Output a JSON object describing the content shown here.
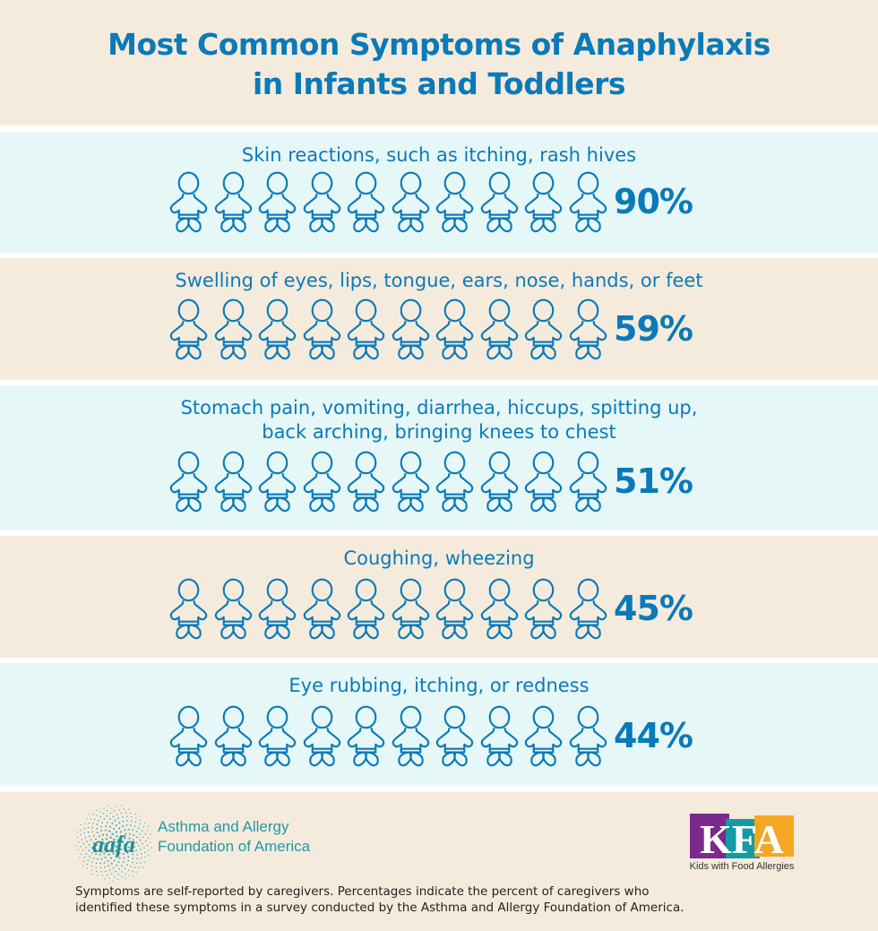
{
  "title_line1": "Most Common Symptoms of Anaphylaxis",
  "title_line2": "in Infants and Toddlers",
  "colors": {
    "accent": "#0a7ab8",
    "band_cyan": "#e6f7f8",
    "band_beige": "#f5ebdd"
  },
  "icon": "baby-outline-icon",
  "chart_data": {
    "type": "bar",
    "categories": [
      "Skin reactions, such as itching, rash hives",
      "Swelling of eyes, lips, tongue, ears, nose, hands, or feet",
      "Stomach pain, vomiting, diarrhea, hiccups, spitting up, back arching, bringing knees to chest",
      "Coughing, wheezing",
      "Eye rubbing, itching, or redness"
    ],
    "values": [
      90,
      59,
      51,
      45,
      44
    ],
    "value_labels": [
      "90%",
      "59%",
      "51%",
      "45%",
      "44%"
    ]
  },
  "rows": [
    {
      "label": "Skin reactions, such as itching, rash hives",
      "pct": "90%"
    },
    {
      "label": "Swelling of eyes, lips, tongue, ears, nose, hands, or feet",
      "pct": "59%"
    },
    {
      "label": "Stomach pain, vomiting, diarrhea, hiccups, spitting up,",
      "label2": "back arching, bringing knees to chest",
      "pct": "51%"
    },
    {
      "label": "Coughing, wheezing",
      "pct": "45%"
    },
    {
      "label": "Eye rubbing, itching, or redness",
      "pct": "44%"
    }
  ],
  "footer": {
    "aafa_logo": "aafa",
    "aafa_line1": "Asthma and Allergy",
    "aafa_line2": "Foundation of America",
    "kfa_logo": "KFA",
    "kfa_tagline": "Kids with Food Allergies",
    "note_line1": "Symptoms are self-reported by caregivers. Percentages indicate the percent of caregivers who",
    "note_line2": "identified these symptoms in a survey conducted by the Asthma and Allergy Foundation of America."
  }
}
